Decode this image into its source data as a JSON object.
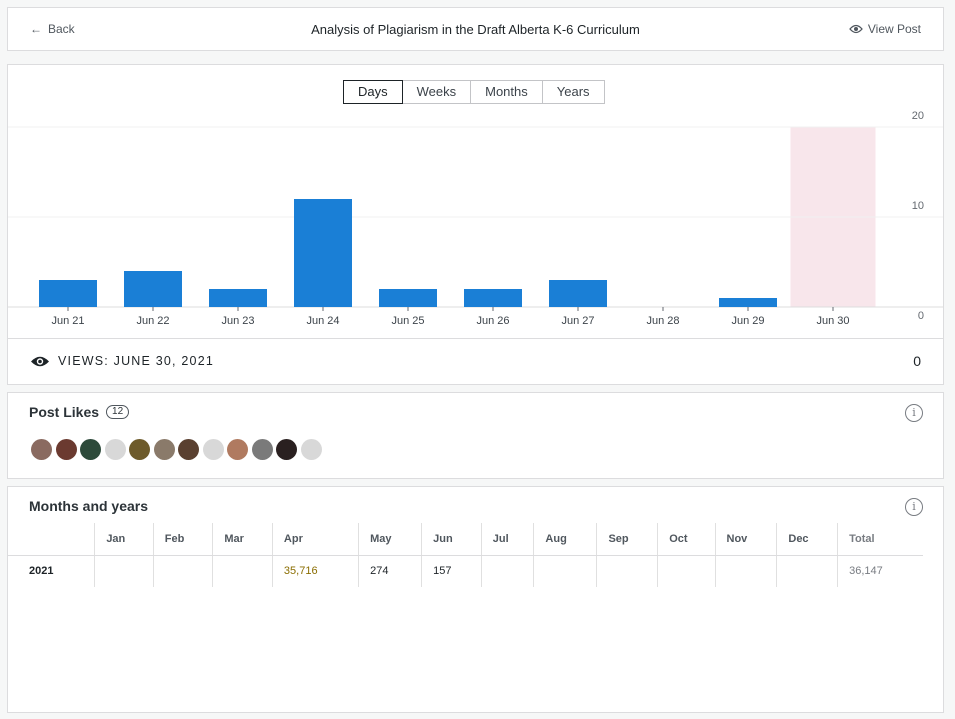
{
  "header": {
    "back": "Back",
    "title": "Analysis of Plagiarism in the Draft Alberta K-6 Curriculum",
    "view_post": "View Post"
  },
  "tabs": [
    {
      "label": "Days",
      "active": true
    },
    {
      "label": "Weeks"
    },
    {
      "label": "Months"
    },
    {
      "label": "Years"
    }
  ],
  "chart_data": {
    "type": "bar",
    "categories": [
      "Jun 21",
      "Jun 22",
      "Jun 23",
      "Jun 24",
      "Jun 25",
      "Jun 26",
      "Jun 27",
      "Jun 28",
      "Jun 29",
      "Jun 30"
    ],
    "values": [
      3,
      4,
      2,
      12,
      2,
      2,
      3,
      0,
      1,
      0
    ],
    "ylim": [
      0,
      20
    ],
    "yticks": [
      0,
      10,
      20
    ],
    "highlighted": "Jun 30",
    "bar_color": "#1a7fd6",
    "highlight_color": "#f8e6eb"
  },
  "views": {
    "label": "VIEWS: JUNE 30, 2021",
    "value": "0"
  },
  "likes": {
    "title": "Post Likes",
    "count": "12",
    "avatar_colors": [
      "#8a6a60",
      "#6b3a30",
      "#2d4a3a",
      "#d8d8d8",
      "#6d5a2a",
      "#8a7a6a",
      "#5a4030",
      "#d8d8d8",
      "#b07a60",
      "#7a7a7a",
      "#2a2020",
      "#d8d8d8"
    ]
  },
  "months": {
    "title": "Months and years",
    "headers": [
      "",
      "Jan",
      "Feb",
      "Mar",
      "Apr",
      "May",
      "Jun",
      "Jul",
      "Aug",
      "Sep",
      "Oct",
      "Nov",
      "Dec",
      "Total"
    ],
    "rows": [
      [
        "2021",
        "",
        "",
        "",
        "35,716",
        "274",
        "157",
        "",
        "",
        "",
        "",
        "",
        "",
        "36,147"
      ]
    ]
  }
}
